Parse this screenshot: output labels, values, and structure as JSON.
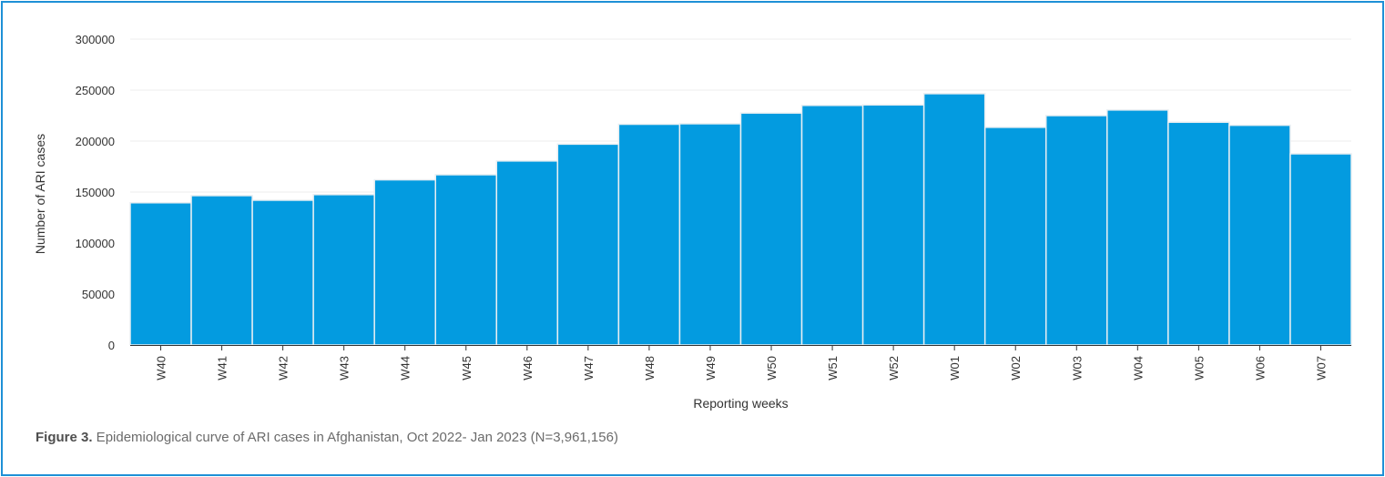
{
  "chart_data": {
    "type": "bar",
    "categories": [
      "W40",
      "W41",
      "W42",
      "W43",
      "W44",
      "W45",
      "W46",
      "W47",
      "W48",
      "W49",
      "W50",
      "W51",
      "W52",
      "W01",
      "W02",
      "W03",
      "W04",
      "W05",
      "W06",
      "W07"
    ],
    "series": [
      {
        "values": [
          139500,
          146500,
          142000,
          147500,
          162000,
          167000,
          180500,
          197000,
          216500,
          217000,
          227500,
          235000,
          235500,
          246500,
          213500,
          225000,
          230500,
          218500,
          215500,
          187500
        ]
      }
    ],
    "ylim": [
      0,
      300000
    ],
    "yticks": [
      0,
      50000,
      100000,
      150000,
      200000,
      250000,
      300000
    ],
    "ytick_labels": [
      "0",
      "50000",
      "100000",
      "150000",
      "200000",
      "250000",
      "300000"
    ],
    "xlabel": "Reporting weeks",
    "ylabel": "Number of ARI cases",
    "grid": true,
    "bar_color": "#039be0",
    "bar_edge_color": "#e8eef2"
  },
  "caption": {
    "label": "Figure 3.",
    "text": " Epidemiological curve of ARI cases in Afghanistan, Oct 2022- Jan 2023 (N=3,961,156)"
  },
  "colors": {
    "frame_border": "#1e90d6",
    "grid_line": "#eeeeee",
    "axis_line": "#333333"
  }
}
